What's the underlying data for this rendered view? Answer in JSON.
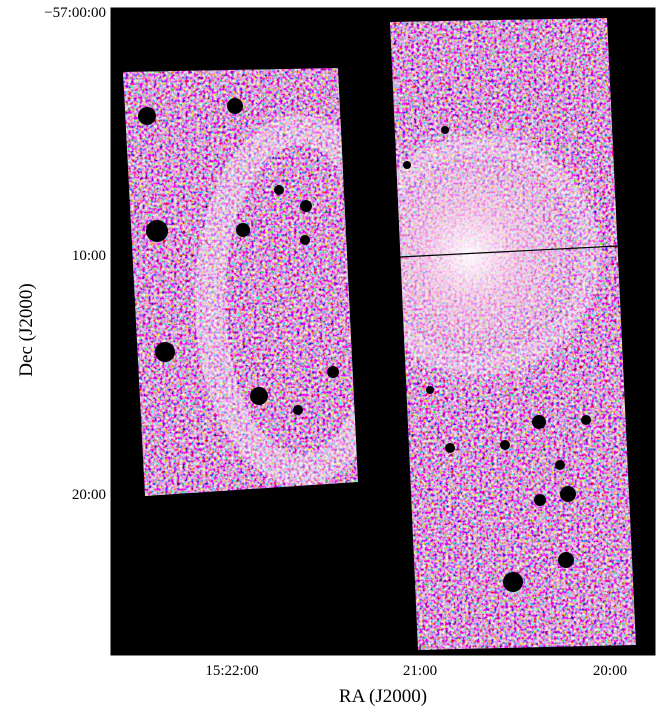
{
  "x_axis": {
    "label": "RA (J2000)",
    "ticks": [
      "15:22:00",
      "21:00",
      "20:00"
    ]
  },
  "y_axis": {
    "label": "Dec (J2000)",
    "ticks": [
      "−57:00:00",
      "10:00",
      "20:00"
    ]
  }
}
